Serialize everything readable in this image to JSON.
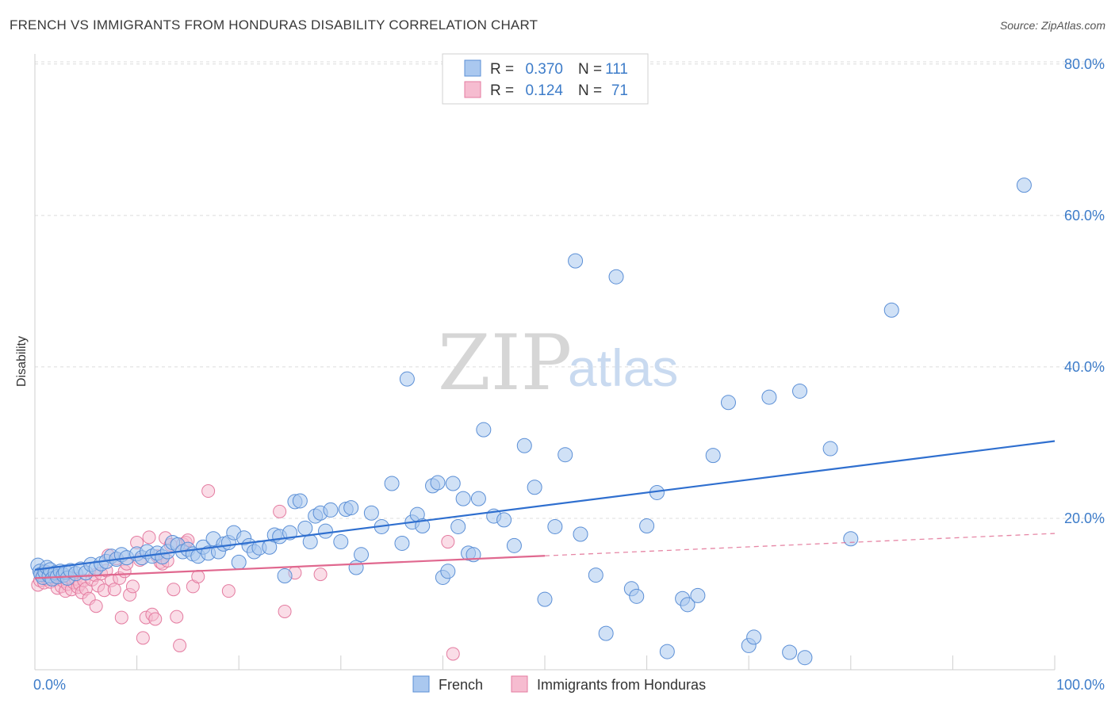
{
  "header": {
    "title": "FRENCH VS IMMIGRANTS FROM HONDURAS DISABILITY CORRELATION CHART",
    "source": "Source: ZipAtlas.com"
  },
  "watermark": {
    "part1": "ZIP",
    "part2": "atlas"
  },
  "colors": {
    "french_fill": "#aac8ef",
    "french_stroke": "#5b8fd6",
    "french_line": "#2f6fcf",
    "honduras_fill": "#f6bcd0",
    "honduras_stroke": "#e47ba0",
    "honduras_line": "#e0688f",
    "value_text": "#3d7cc9",
    "grid": "#dcdcdc"
  },
  "stats_box": {
    "rows": [
      {
        "r_label": "R =",
        "r_value": "0.370",
        "n_label": "N =",
        "n_value": "111"
      },
      {
        "r_label": "R =",
        "r_value": "0.124",
        "n_label": "N =",
        "n_value": "71"
      }
    ]
  },
  "chart_data": {
    "type": "scatter",
    "title": "FRENCH VS IMMIGRANTS FROM HONDURAS DISABILITY CORRELATION CHART",
    "xlabel": "",
    "ylabel": "Disability",
    "xlim": [
      0,
      100
    ],
    "ylim": [
      0,
      85
    ],
    "x_tick_labels": [
      {
        "value": 0,
        "label": "0.0%"
      },
      {
        "value": 100,
        "label": "100.0%"
      }
    ],
    "y_tick_labels": [
      {
        "value": 20,
        "label": "20.0%"
      },
      {
        "value": 40,
        "label": "40.0%"
      },
      {
        "value": 60,
        "label": "60.0%"
      },
      {
        "value": 80,
        "label": "80.0%"
      }
    ],
    "grid": true,
    "legend_position": "bottom-center",
    "series": [
      {
        "name": "French",
        "r": 0.37,
        "n": 111,
        "trend": {
          "x0": 0,
          "y0": 13.2,
          "x1": 100,
          "y1": 30.2,
          "solid_until": 100
        },
        "points": [
          [
            0.3,
            13.8
          ],
          [
            0.5,
            13.0
          ],
          [
            0.6,
            12.6
          ],
          [
            0.8,
            12.2
          ],
          [
            1.0,
            12.9
          ],
          [
            1.2,
            13.5
          ],
          [
            1.4,
            12.4
          ],
          [
            1.5,
            13.2
          ],
          [
            1.7,
            12.0
          ],
          [
            2.0,
            12.8
          ],
          [
            2.2,
            12.3
          ],
          [
            2.5,
            13.0
          ],
          [
            2.8,
            12.5
          ],
          [
            3.0,
            12.9
          ],
          [
            3.2,
            12.1
          ],
          [
            3.5,
            13.1
          ],
          [
            4.0,
            12.7
          ],
          [
            4.5,
            13.3
          ],
          [
            5.0,
            12.8
          ],
          [
            5.5,
            13.9
          ],
          [
            6.0,
            13.4
          ],
          [
            6.5,
            14.0
          ],
          [
            7.0,
            14.3
          ],
          [
            7.5,
            15.0
          ],
          [
            8.0,
            14.6
          ],
          [
            8.5,
            15.2
          ],
          [
            9.0,
            14.8
          ],
          [
            10.0,
            15.3
          ],
          [
            10.5,
            14.8
          ],
          [
            11.0,
            15.6
          ],
          [
            11.5,
            15.0
          ],
          [
            12.0,
            15.4
          ],
          [
            12.5,
            14.9
          ],
          [
            13.0,
            15.6
          ],
          [
            13.5,
            16.8
          ],
          [
            14.0,
            16.5
          ],
          [
            14.5,
            15.6
          ],
          [
            15.0,
            15.9
          ],
          [
            15.5,
            15.3
          ],
          [
            16.0,
            15.0
          ],
          [
            16.5,
            16.2
          ],
          [
            17.0,
            15.4
          ],
          [
            17.5,
            17.3
          ],
          [
            18.0,
            15.6
          ],
          [
            18.5,
            16.6
          ],
          [
            19.0,
            16.8
          ],
          [
            19.5,
            18.1
          ],
          [
            20.0,
            14.2
          ],
          [
            20.5,
            17.4
          ],
          [
            21.0,
            16.4
          ],
          [
            21.5,
            15.6
          ],
          [
            22.0,
            16.1
          ],
          [
            23.0,
            16.2
          ],
          [
            23.5,
            17.8
          ],
          [
            24.0,
            17.6
          ],
          [
            24.5,
            12.4
          ],
          [
            25.0,
            18.1
          ],
          [
            25.5,
            22.2
          ],
          [
            26.0,
            22.3
          ],
          [
            26.5,
            18.7
          ],
          [
            27.0,
            16.9
          ],
          [
            27.5,
            20.3
          ],
          [
            28.0,
            20.7
          ],
          [
            28.5,
            18.3
          ],
          [
            29.0,
            21.1
          ],
          [
            30.0,
            16.9
          ],
          [
            30.5,
            21.2
          ],
          [
            31.0,
            21.4
          ],
          [
            31.5,
            13.5
          ],
          [
            32.0,
            15.2
          ],
          [
            33.0,
            20.7
          ],
          [
            34.0,
            18.9
          ],
          [
            35.0,
            24.6
          ],
          [
            36.0,
            16.7
          ],
          [
            36.5,
            38.4
          ],
          [
            37.0,
            19.5
          ],
          [
            37.5,
            20.5
          ],
          [
            38.0,
            19.0
          ],
          [
            39.0,
            24.3
          ],
          [
            39.5,
            24.7
          ],
          [
            40.0,
            12.2
          ],
          [
            40.5,
            13.0
          ],
          [
            41.0,
            24.6
          ],
          [
            41.5,
            18.9
          ],
          [
            42.0,
            22.6
          ],
          [
            42.5,
            15.4
          ],
          [
            43.0,
            15.2
          ],
          [
            43.5,
            22.6
          ],
          [
            44.0,
            31.7
          ],
          [
            45.0,
            20.3
          ],
          [
            46.0,
            19.8
          ],
          [
            47.0,
            16.4
          ],
          [
            48.0,
            29.6
          ],
          [
            49.0,
            24.1
          ],
          [
            50.0,
            9.3
          ],
          [
            51.0,
            18.9
          ],
          [
            52.0,
            28.4
          ],
          [
            53.0,
            54.0
          ],
          [
            53.5,
            17.9
          ],
          [
            55.0,
            12.5
          ],
          [
            56.0,
            4.8
          ],
          [
            57.0,
            51.9
          ],
          [
            58.5,
            10.7
          ],
          [
            59.0,
            9.7
          ],
          [
            60.0,
            19.0
          ],
          [
            61.0,
            23.4
          ],
          [
            62.0,
            2.4
          ],
          [
            63.5,
            9.4
          ],
          [
            64.0,
            8.6
          ],
          [
            65.0,
            9.8
          ],
          [
            66.5,
            28.3
          ],
          [
            68.0,
            35.3
          ],
          [
            70.0,
            3.2
          ],
          [
            70.5,
            4.3
          ],
          [
            72.0,
            36.0
          ],
          [
            74.0,
            2.3
          ],
          [
            75.0,
            36.8
          ],
          [
            75.5,
            1.6
          ],
          [
            78.0,
            29.2
          ],
          [
            80.0,
            17.3
          ],
          [
            84.0,
            47.5
          ],
          [
            97.0,
            64.0
          ]
        ]
      },
      {
        "name": "Immigrants from Honduras",
        "r": 0.124,
        "n": 71,
        "trend": {
          "x0": 0,
          "y0": 12.1,
          "x1": 100,
          "y1": 18.0,
          "solid_until": 50
        },
        "points": [
          [
            0.3,
            11.2
          ],
          [
            0.5,
            11.8
          ],
          [
            0.7,
            12.4
          ],
          [
            0.9,
            11.5
          ],
          [
            1.0,
            12.9
          ],
          [
            1.2,
            12.0
          ],
          [
            1.5,
            11.6
          ],
          [
            1.8,
            12.7
          ],
          [
            2.0,
            11.9
          ],
          [
            2.2,
            10.8
          ],
          [
            2.4,
            12.3
          ],
          [
            2.6,
            11.0
          ],
          [
            2.8,
            11.7
          ],
          [
            3.0,
            10.4
          ],
          [
            3.2,
            11.3
          ],
          [
            3.4,
            12.2
          ],
          [
            3.6,
            10.6
          ],
          [
            3.8,
            11.5
          ],
          [
            4.0,
            12.0
          ],
          [
            4.2,
            10.9
          ],
          [
            4.4,
            11.3
          ],
          [
            4.6,
            10.2
          ],
          [
            4.8,
            11.8
          ],
          [
            5.0,
            10.7
          ],
          [
            5.3,
            9.4
          ],
          [
            5.6,
            11.9
          ],
          [
            5.9,
            12.5
          ],
          [
            6.0,
            8.4
          ],
          [
            6.2,
            11.1
          ],
          [
            6.5,
            12.7
          ],
          [
            6.8,
            10.5
          ],
          [
            7.0,
            13.1
          ],
          [
            7.2,
            15.1
          ],
          [
            7.5,
            11.8
          ],
          [
            7.8,
            10.6
          ],
          [
            8.0,
            14.7
          ],
          [
            8.3,
            12.1
          ],
          [
            8.5,
            6.9
          ],
          [
            8.8,
            13.0
          ],
          [
            9.0,
            14.0
          ],
          [
            9.3,
            9.9
          ],
          [
            9.6,
            11.0
          ],
          [
            10.0,
            16.8
          ],
          [
            10.3,
            14.5
          ],
          [
            10.6,
            4.2
          ],
          [
            10.9,
            6.9
          ],
          [
            11.2,
            17.5
          ],
          [
            11.5,
            7.3
          ],
          [
            11.8,
            6.7
          ],
          [
            12.0,
            15.0
          ],
          [
            12.3,
            14.2
          ],
          [
            12.5,
            14.0
          ],
          [
            12.8,
            17.4
          ],
          [
            13.0,
            14.4
          ],
          [
            13.3,
            16.5
          ],
          [
            13.6,
            10.6
          ],
          [
            13.9,
            7.0
          ],
          [
            14.2,
            3.2
          ],
          [
            14.5,
            16.6
          ],
          [
            14.8,
            16.8
          ],
          [
            15.0,
            17.1
          ],
          [
            15.5,
            11.0
          ],
          [
            16.0,
            12.3
          ],
          [
            17.0,
            23.6
          ],
          [
            19.0,
            10.4
          ],
          [
            24.0,
            20.9
          ],
          [
            24.5,
            7.7
          ],
          [
            25.5,
            12.8
          ],
          [
            28.0,
            12.6
          ],
          [
            40.5,
            16.9
          ],
          [
            41.0,
            2.1
          ]
        ]
      }
    ]
  },
  "legend": {
    "items": [
      {
        "label": "French"
      },
      {
        "label": "Immigrants from Honduras"
      }
    ]
  }
}
